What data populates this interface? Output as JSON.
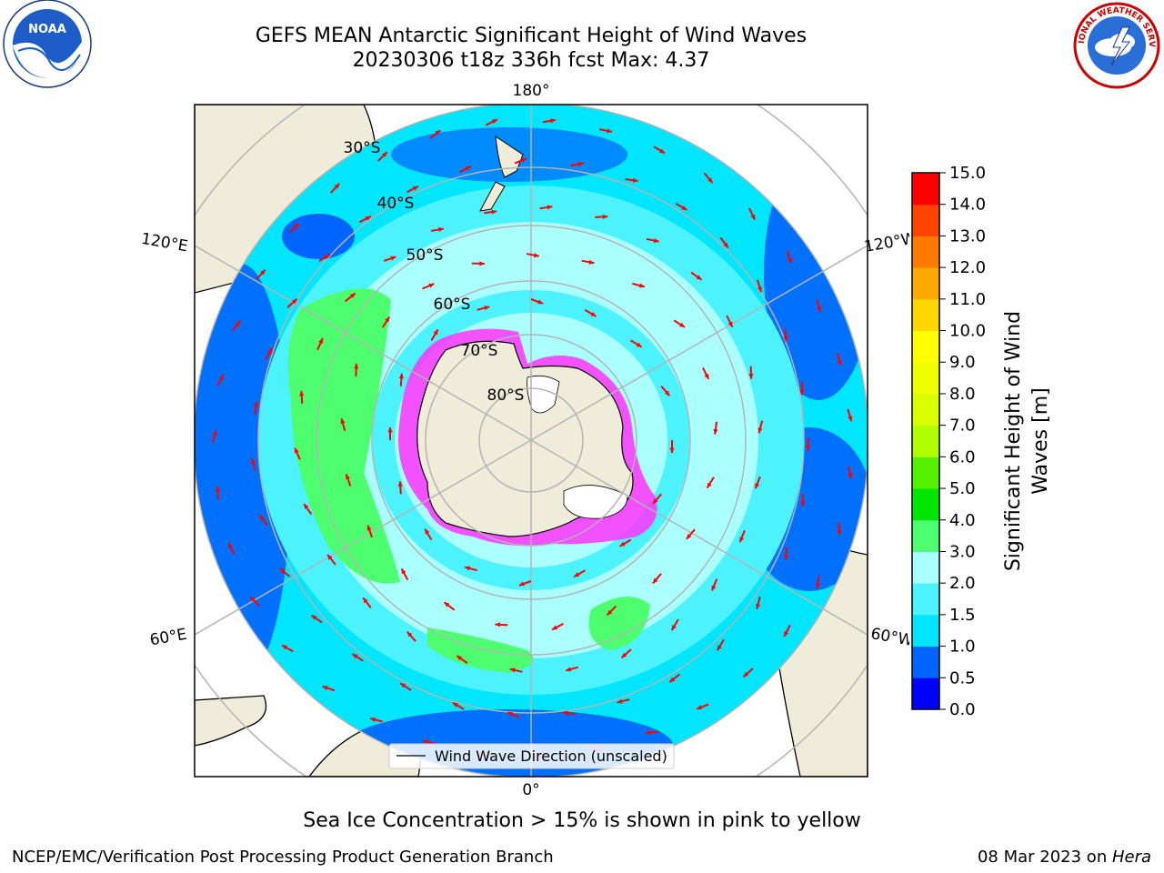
{
  "header": {
    "title_line1": "GEFS MEAN Antarctic Significant Height of Wind Waves",
    "title_line2": "20230306 t18z 336h fcst   Max: 4.37"
  },
  "logos": {
    "left": {
      "name": "noaa-logo",
      "text": "NOAA"
    },
    "right": {
      "name": "nws-logo",
      "text": "NATIONAL WEATHER SERVICE"
    }
  },
  "map": {
    "projection": "south-polar-stereographic",
    "longitude_labels": {
      "top": "180°",
      "bottom": "0°",
      "upper_left": "120°E",
      "upper_right": "120°W",
      "lower_left": "60°E",
      "lower_right": "60°W"
    },
    "latitude_labels": [
      "30°S",
      "40°S",
      "50°S",
      "60°S",
      "70°S",
      "80°S"
    ],
    "legend_label": "Wind Wave Direction (unscaled)",
    "colors": {
      "land": "#efedd9",
      "ice": "#ff33ff",
      "arrows": "#ff0000",
      "grid": "#b4b4b4"
    }
  },
  "colorbar": {
    "title": "Significant Height of Wind Waves [m]",
    "ticks": [
      "0.0",
      "0.5",
      "1.0",
      "1.5",
      "2.0",
      "3.0",
      "4.0",
      "5.0",
      "6.0",
      "7.0",
      "8.0",
      "9.0",
      "10.0",
      "11.0",
      "12.0",
      "13.0",
      "14.0",
      "15.0"
    ],
    "colors": [
      "#0000ff",
      "#0064ff",
      "#00e6ff",
      "#4df2ff",
      "#aaffff",
      "#4dff6e",
      "#00e600",
      "#55ef00",
      "#b0ff00",
      "#d9ff00",
      "#f0ff00",
      "#ffff00",
      "#ffd700",
      "#ffaa00",
      "#ff7a00",
      "#ff4400",
      "#ff0000"
    ]
  },
  "notes": {
    "sea_ice": "Sea Ice Concentration > 15% is shown in pink to yellow"
  },
  "footer": {
    "left": "NCEP/EMC/Verification Post Processing Product Generation Branch",
    "right_date": "08 Mar 2023 on ",
    "right_host": "Hera"
  }
}
